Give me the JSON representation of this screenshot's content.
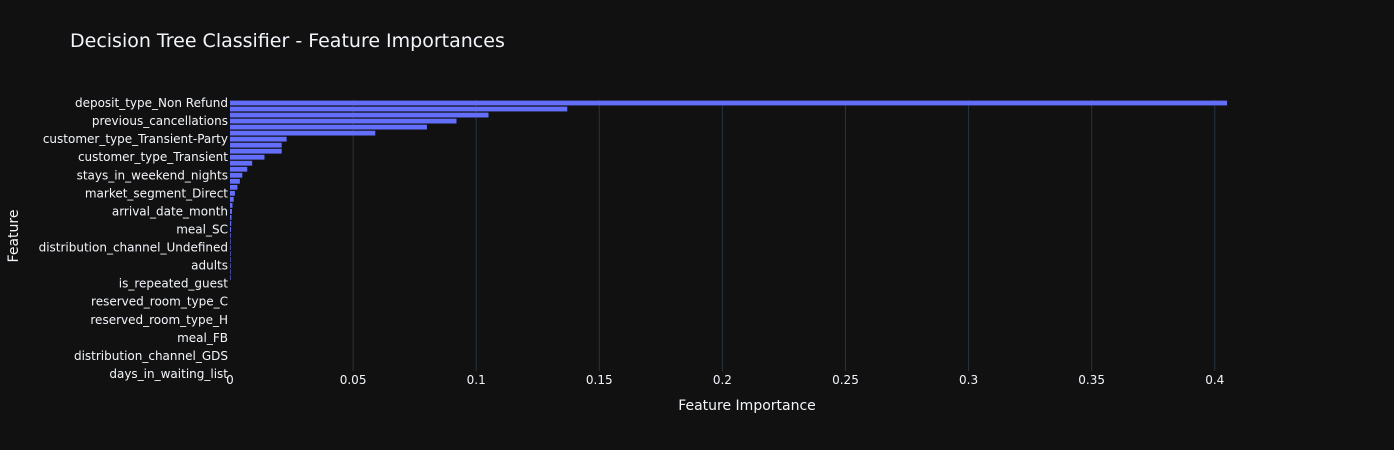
{
  "colors": {
    "background": "#111111",
    "bar": "#636efa",
    "grid": "#283442",
    "text": "#f2f5fa"
  },
  "chart_data": {
    "type": "bar",
    "orientation": "horizontal",
    "title": "Decision Tree Classifier - Feature Importances",
    "xlabel": "Feature Importance",
    "ylabel": "Feature",
    "xlim": [
      0,
      0.42
    ],
    "x_ticks": [
      0,
      0.05,
      0.1,
      0.15,
      0.2,
      0.25,
      0.3,
      0.35,
      0.4
    ],
    "x_tick_labels": [
      "0",
      "0.05",
      "0.1",
      "0.15",
      "0.2",
      "0.25",
      "0.3",
      "0.35",
      "0.4"
    ],
    "grid": true,
    "bar_count": 45,
    "labeled_categories": [
      "deposit_type_Non Refund",
      "previous_cancellations",
      "customer_type_Transient-Party",
      "customer_type_Transient",
      "stays_in_weekend_nights",
      "market_segment_Direct",
      "arrival_date_month",
      "meal_SC",
      "distribution_channel_Undefined",
      "adults",
      "is_repeated_guest",
      "reserved_room_type_C",
      "reserved_room_type_H",
      "meal_FB",
      "distribution_channel_GDS",
      "days_in_waiting_list"
    ],
    "values": [
      0.405,
      0.137,
      0.105,
      0.092,
      0.08,
      0.059,
      0.023,
      0.021,
      0.021,
      0.014,
      0.009,
      0.007,
      0.005,
      0.004,
      0.003,
      0.002,
      0.0015,
      0.001,
      0.0008,
      0.0006,
      0.0005,
      0.0004,
      0.0003,
      0.0002,
      0.0002,
      0.0001,
      0.0001,
      0.0001,
      5e-05,
      5e-05,
      0,
      0,
      0,
      0,
      0,
      0,
      0,
      0,
      0,
      0,
      0,
      0,
      0,
      0,
      0
    ]
  }
}
